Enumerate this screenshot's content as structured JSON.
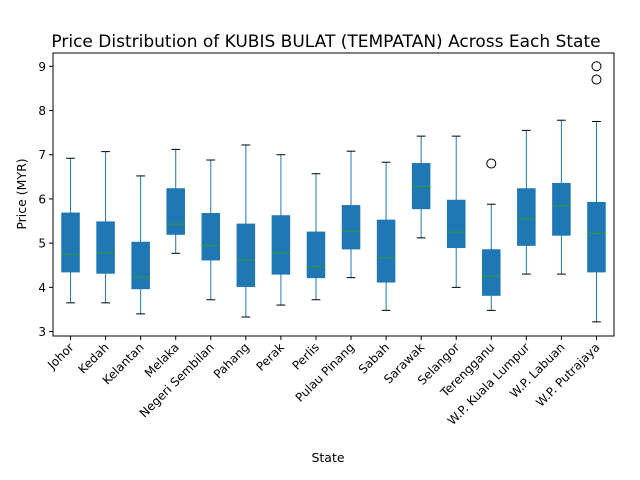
{
  "chart_data": {
    "type": "box",
    "title": "Price Distribution of KUBIS BULAT (TEMPATAN) Across Each State",
    "xlabel": "State",
    "ylabel": "Price (MYR)",
    "ylim": [
      2.9,
      9.3
    ],
    "yticks": [
      3,
      4,
      5,
      6,
      7,
      8,
      9
    ],
    "grid": false,
    "box_color": "#1f77b4",
    "median_color": "#2ca02c",
    "categories": [
      "Johor",
      "Kedah",
      "Kelantan",
      "Melaka",
      "Negeri Sembilan",
      "Pahang",
      "Perak",
      "Perlis",
      "Pulau Pinang",
      "Sabah",
      "Sarawak",
      "Selangor",
      "Terengganu",
      "W.P. Kuala Lumpur",
      "W.P. Labuan",
      "W.P. Putrajaya"
    ],
    "boxes": [
      {
        "whislo": 3.65,
        "q1": 4.35,
        "med": 4.75,
        "q3": 5.68,
        "whishi": 6.92,
        "fliers": []
      },
      {
        "whislo": 3.65,
        "q1": 4.32,
        "med": 4.78,
        "q3": 5.48,
        "whishi": 7.07,
        "fliers": []
      },
      {
        "whislo": 3.4,
        "q1": 3.97,
        "med": 4.23,
        "q3": 5.02,
        "whishi": 6.52,
        "fliers": []
      },
      {
        "whislo": 4.77,
        "q1": 5.2,
        "med": 5.43,
        "q3": 6.23,
        "whishi": 7.12,
        "fliers": []
      },
      {
        "whislo": 3.72,
        "q1": 4.62,
        "med": 4.95,
        "q3": 5.67,
        "whishi": 6.88,
        "fliers": []
      },
      {
        "whislo": 3.33,
        "q1": 4.02,
        "med": 4.62,
        "q3": 5.43,
        "whishi": 7.22,
        "fliers": []
      },
      {
        "whislo": 3.6,
        "q1": 4.3,
        "med": 4.77,
        "q3": 5.62,
        "whishi": 7.0,
        "fliers": []
      },
      {
        "whislo": 3.72,
        "q1": 4.22,
        "med": 4.47,
        "q3": 5.25,
        "whishi": 6.57,
        "fliers": []
      },
      {
        "whislo": 4.22,
        "q1": 4.87,
        "med": 5.27,
        "q3": 5.85,
        "whishi": 7.08,
        "fliers": []
      },
      {
        "whislo": 3.48,
        "q1": 4.12,
        "med": 4.67,
        "q3": 5.52,
        "whishi": 6.83,
        "fliers": []
      },
      {
        "whislo": 5.12,
        "q1": 5.78,
        "med": 6.28,
        "q3": 6.8,
        "whishi": 7.42,
        "fliers": []
      },
      {
        "whislo": 4.0,
        "q1": 4.9,
        "med": 5.25,
        "q3": 5.97,
        "whishi": 7.42,
        "fliers": []
      },
      {
        "whislo": 3.48,
        "q1": 3.82,
        "med": 4.25,
        "q3": 4.85,
        "whishi": 5.88,
        "fliers": [
          6.8
        ]
      },
      {
        "whislo": 4.3,
        "q1": 4.95,
        "med": 5.55,
        "q3": 6.23,
        "whishi": 7.55,
        "fliers": []
      },
      {
        "whislo": 4.3,
        "q1": 5.18,
        "med": 5.85,
        "q3": 6.35,
        "whishi": 7.78,
        "fliers": []
      },
      {
        "whislo": 3.22,
        "q1": 4.35,
        "med": 5.22,
        "q3": 5.92,
        "whishi": 7.75,
        "fliers": [
          8.7,
          9.0
        ]
      }
    ]
  }
}
